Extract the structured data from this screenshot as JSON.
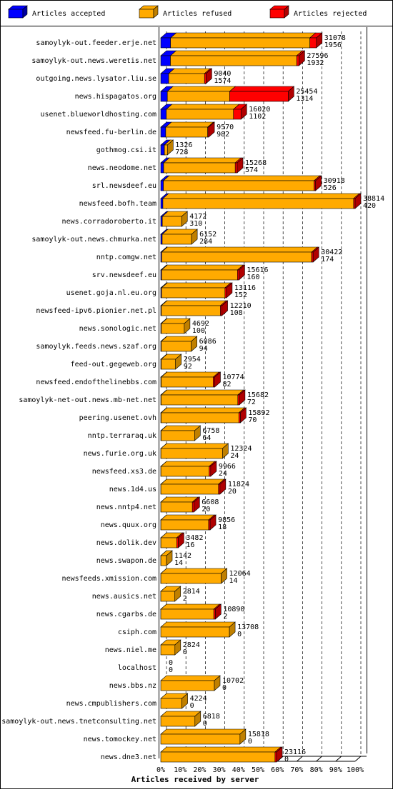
{
  "chart_data": {
    "type": "bar",
    "orientation": "horizontal",
    "stacked": true,
    "xlabel": "Articles received by server",
    "categories": [
      "samoylyk-out.feeder.erje.net",
      "samoylyk-out.news.weretis.net",
      "outgoing.news.lysator.liu.se",
      "news.hispagatos.org",
      "usenet.blueworldhosting.com",
      "newsfeed.fu-berlin.de",
      "gothmog.csi.it",
      "news.neodome.net",
      "srl.newsdeef.eu",
      "newsfeed.bofh.team",
      "news.corradoroberto.it",
      "samoylyk-out.news.chmurka.net",
      "nntp.comgw.net",
      "srv.newsdeef.eu",
      "usenet.goja.nl.eu.org",
      "newsfeed-ipv6.pionier.net.pl",
      "news.sonologic.net",
      "samoylyk.feeds.news.szaf.org",
      "feed-out.gegeweb.org",
      "newsfeed.endofthelinebbs.com",
      "samoylyk-net-out.news.mb-net.net",
      "peering.usenet.ovh",
      "nntp.terraraq.uk",
      "news.furie.org.uk",
      "newsfeed.xs3.de",
      "news.1d4.us",
      "news.nntp4.net",
      "news.quux.org",
      "news.dolik.dev",
      "news.swapon.de",
      "newsfeeds.xmission.com",
      "news.ausics.net",
      "news.cgarbs.de",
      "csiph.com",
      "news.niel.me",
      "localhost",
      "news.bbs.nz",
      "news.cmpublishers.com",
      "samoylyk-out.news.tnetconsulting.net",
      "news.tomockey.net",
      "news.dne3.net"
    ],
    "totals": [
      31078,
      27596,
      9040,
      25454,
      16020,
      9570,
      1326,
      15268,
      30918,
      38814,
      4172,
      6152,
      30422,
      15616,
      13116,
      12210,
      4692,
      6086,
      2954,
      10774,
      15682,
      15892,
      6758,
      12324,
      9966,
      11824,
      6608,
      9856,
      3482,
      1142,
      12064,
      2814,
      10890,
      13708,
      2824,
      0,
      10702,
      4224,
      6818,
      15818,
      23116
    ],
    "series": [
      {
        "name": "Articles accepted",
        "color": "#0000ff",
        "side_color": "#0000a0",
        "values": [
          1956,
          1932,
          1574,
          1314,
          1102,
          982,
          728,
          574,
          526,
          420,
          310,
          284,
          174,
          160,
          152,
          108,
          100,
          94,
          92,
          82,
          72,
          70,
          64,
          24,
          24,
          20,
          20,
          18,
          16,
          14,
          14,
          2,
          2,
          0,
          0,
          0,
          0,
          0,
          0,
          0,
          0
        ]
      },
      {
        "name": "Articles refused",
        "color": "#ffaa00",
        "side_color": "#c08000",
        "values": [
          27822,
          25214,
          7166,
          12440,
          13418,
          8388,
          598,
          14294,
          30092,
          38094,
          3862,
          5868,
          29948,
          15156,
          12664,
          11802,
          4592,
          5992,
          2862,
          10392,
          15310,
          15522,
          6694,
          12300,
          9642,
          11504,
          6288,
          9538,
          3166,
          1128,
          12050,
          2812,
          10588,
          13708,
          2824,
          0,
          10702,
          4224,
          6818,
          15818,
          22816
        ]
      },
      {
        "name": "Articles rejected",
        "color": "#ff0000",
        "side_color": "#b00000",
        "values": [
          1300,
          450,
          300,
          11700,
          1500,
          200,
          0,
          400,
          300,
          300,
          0,
          0,
          300,
          300,
          300,
          300,
          0,
          0,
          0,
          300,
          300,
          300,
          0,
          0,
          300,
          300,
          300,
          300,
          300,
          0,
          0,
          0,
          300,
          0,
          0,
          0,
          0,
          0,
          0,
          0,
          300
        ]
      }
    ],
    "xlim": [
      0,
      38814
    ],
    "xticks": [
      {
        "value": 0,
        "label": "0%"
      },
      {
        "value": 3881.4,
        "label": "10%"
      },
      {
        "value": 7762.8,
        "label": "20%"
      },
      {
        "value": 11644.2,
        "label": "30%"
      },
      {
        "value": 15525.6,
        "label": "40%"
      },
      {
        "value": 19407,
        "label": "50%"
      },
      {
        "value": 23288.4,
        "label": "60%"
      },
      {
        "value": 27169.8,
        "label": "70%"
      },
      {
        "value": 31051.2,
        "label": "80%"
      },
      {
        "value": 34932.6,
        "label": "90%"
      },
      {
        "value": 38814,
        "label": "100%"
      }
    ],
    "grid": true,
    "legend": "top"
  }
}
